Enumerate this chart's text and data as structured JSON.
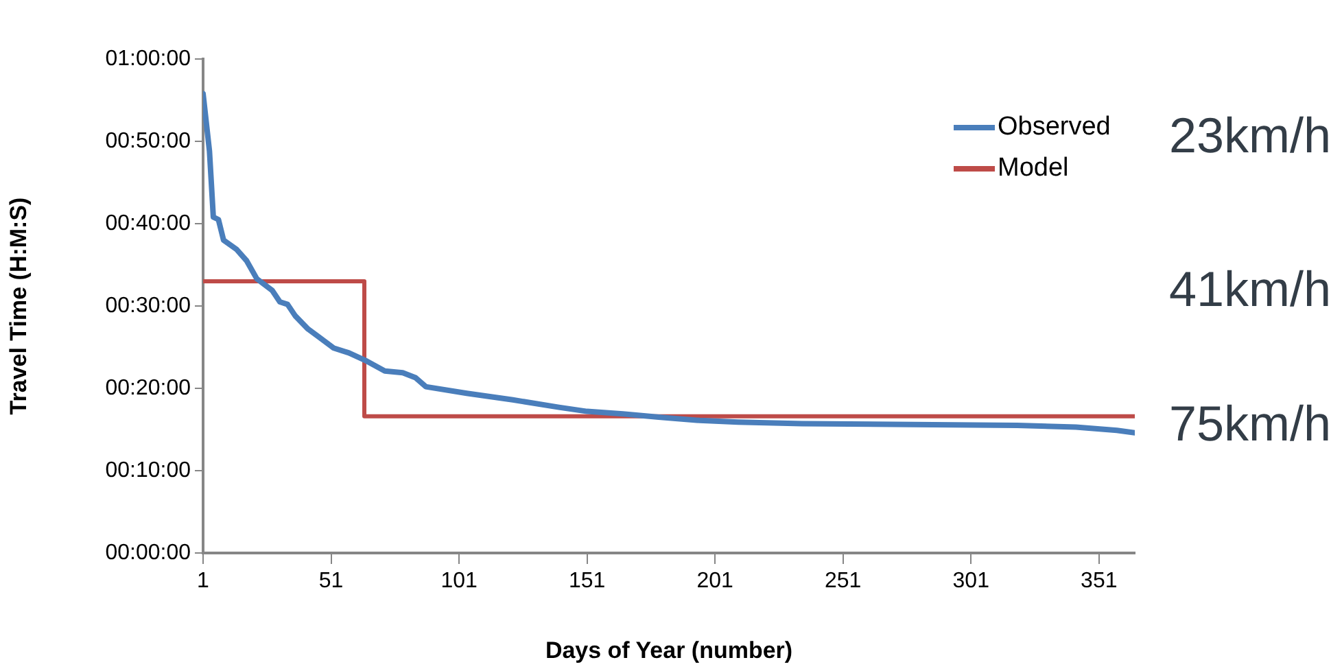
{
  "chart_data": {
    "type": "line",
    "xlabel": "Days of Year (number)",
    "ylabel": "Travel Time (H:M:S)",
    "xlim": [
      1,
      365
    ],
    "xticks": [
      1,
      51,
      101,
      151,
      201,
      251,
      301,
      351
    ],
    "ylim": [
      0,
      60
    ],
    "yticks": [
      {
        "value": 0,
        "label": "00:00:00"
      },
      {
        "value": 10,
        "label": "00:10:00"
      },
      {
        "value": 20,
        "label": "00:20:00"
      },
      {
        "value": 30,
        "label": "00:30:00"
      },
      {
        "value": 40,
        "label": "00:40:00"
      },
      {
        "value": 50,
        "label": "00:50:00"
      },
      {
        "value": 60,
        "label": "01:00:00"
      }
    ],
    "series": [
      {
        "name": "Observed",
        "color": "#4a7ebb",
        "x": [
          1,
          3.5,
          5,
          7,
          9,
          14,
          18,
          22,
          28,
          31,
          34,
          37,
          42,
          46,
          52,
          58,
          65,
          72,
          79,
          84,
          88,
          104,
          122,
          140,
          151,
          165,
          179,
          195,
          210,
          235,
          278,
          319,
          342,
          358,
          365
        ],
        "values": [
          55.8,
          48.8,
          40.8,
          40.5,
          38,
          36.9,
          35.5,
          33.3,
          31.9,
          30.5,
          30.2,
          28.8,
          27.2,
          26.3,
          24.9,
          24.3,
          23.3,
          22.1,
          21.9,
          21.3,
          20.2,
          19.4,
          18.6,
          17.7,
          17.2,
          16.9,
          16.5,
          16.1,
          15.9,
          15.7,
          15.6,
          15.5,
          15.3,
          14.9,
          14.6
        ]
      },
      {
        "name": "Model",
        "color": "#be4b48",
        "x": [
          1,
          64,
          64,
          365
        ],
        "values": [
          33,
          33,
          16.6,
          16.6
        ]
      }
    ],
    "legend": "top right",
    "grid": false,
    "marker": "none",
    "line_style": "solid",
    "annotations": [
      "23km/h",
      "41km/h",
      "75km/h"
    ]
  }
}
